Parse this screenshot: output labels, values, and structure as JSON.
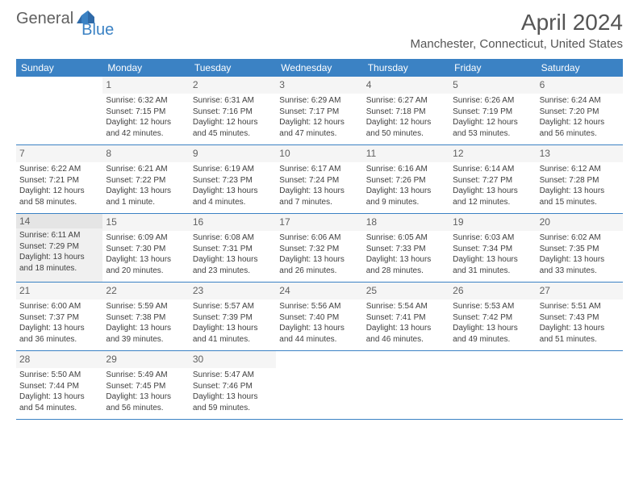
{
  "brand": {
    "part1": "General",
    "part2": "Blue"
  },
  "title": "April 2024",
  "location": "Manchester, Connecticut, United States",
  "colors": {
    "header_bg": "#3b82c4",
    "header_text": "#ffffff",
    "title_color": "#555555",
    "text_color": "#404040",
    "shaded_bg": "#f0f0f0",
    "rule_color": "#3b82c4"
  },
  "weekdays": [
    "Sunday",
    "Monday",
    "Tuesday",
    "Wednesday",
    "Thursday",
    "Friday",
    "Saturday"
  ],
  "weeks": [
    [
      {
        "blank": true
      },
      {
        "n": "1",
        "sr": "Sunrise: 6:32 AM",
        "ss": "Sunset: 7:15 PM",
        "d1": "Daylight: 12 hours",
        "d2": "and 42 minutes."
      },
      {
        "n": "2",
        "sr": "Sunrise: 6:31 AM",
        "ss": "Sunset: 7:16 PM",
        "d1": "Daylight: 12 hours",
        "d2": "and 45 minutes."
      },
      {
        "n": "3",
        "sr": "Sunrise: 6:29 AM",
        "ss": "Sunset: 7:17 PM",
        "d1": "Daylight: 12 hours",
        "d2": "and 47 minutes."
      },
      {
        "n": "4",
        "sr": "Sunrise: 6:27 AM",
        "ss": "Sunset: 7:18 PM",
        "d1": "Daylight: 12 hours",
        "d2": "and 50 minutes."
      },
      {
        "n": "5",
        "sr": "Sunrise: 6:26 AM",
        "ss": "Sunset: 7:19 PM",
        "d1": "Daylight: 12 hours",
        "d2": "and 53 minutes."
      },
      {
        "n": "6",
        "sr": "Sunrise: 6:24 AM",
        "ss": "Sunset: 7:20 PM",
        "d1": "Daylight: 12 hours",
        "d2": "and 56 minutes."
      }
    ],
    [
      {
        "n": "7",
        "sr": "Sunrise: 6:22 AM",
        "ss": "Sunset: 7:21 PM",
        "d1": "Daylight: 12 hours",
        "d2": "and 58 minutes."
      },
      {
        "n": "8",
        "sr": "Sunrise: 6:21 AM",
        "ss": "Sunset: 7:22 PM",
        "d1": "Daylight: 13 hours",
        "d2": "and 1 minute."
      },
      {
        "n": "9",
        "sr": "Sunrise: 6:19 AM",
        "ss": "Sunset: 7:23 PM",
        "d1": "Daylight: 13 hours",
        "d2": "and 4 minutes."
      },
      {
        "n": "10",
        "sr": "Sunrise: 6:17 AM",
        "ss": "Sunset: 7:24 PM",
        "d1": "Daylight: 13 hours",
        "d2": "and 7 minutes."
      },
      {
        "n": "11",
        "sr": "Sunrise: 6:16 AM",
        "ss": "Sunset: 7:26 PM",
        "d1": "Daylight: 13 hours",
        "d2": "and 9 minutes."
      },
      {
        "n": "12",
        "sr": "Sunrise: 6:14 AM",
        "ss": "Sunset: 7:27 PM",
        "d1": "Daylight: 13 hours",
        "d2": "and 12 minutes."
      },
      {
        "n": "13",
        "sr": "Sunrise: 6:12 AM",
        "ss": "Sunset: 7:28 PM",
        "d1": "Daylight: 13 hours",
        "d2": "and 15 minutes."
      }
    ],
    [
      {
        "n": "14",
        "shaded": true,
        "sr": "Sunrise: 6:11 AM",
        "ss": "Sunset: 7:29 PM",
        "d1": "Daylight: 13 hours",
        "d2": "and 18 minutes."
      },
      {
        "n": "15",
        "sr": "Sunrise: 6:09 AM",
        "ss": "Sunset: 7:30 PM",
        "d1": "Daylight: 13 hours",
        "d2": "and 20 minutes."
      },
      {
        "n": "16",
        "sr": "Sunrise: 6:08 AM",
        "ss": "Sunset: 7:31 PM",
        "d1": "Daylight: 13 hours",
        "d2": "and 23 minutes."
      },
      {
        "n": "17",
        "sr": "Sunrise: 6:06 AM",
        "ss": "Sunset: 7:32 PM",
        "d1": "Daylight: 13 hours",
        "d2": "and 26 minutes."
      },
      {
        "n": "18",
        "sr": "Sunrise: 6:05 AM",
        "ss": "Sunset: 7:33 PM",
        "d1": "Daylight: 13 hours",
        "d2": "and 28 minutes."
      },
      {
        "n": "19",
        "sr": "Sunrise: 6:03 AM",
        "ss": "Sunset: 7:34 PM",
        "d1": "Daylight: 13 hours",
        "d2": "and 31 minutes."
      },
      {
        "n": "20",
        "sr": "Sunrise: 6:02 AM",
        "ss": "Sunset: 7:35 PM",
        "d1": "Daylight: 13 hours",
        "d2": "and 33 minutes."
      }
    ],
    [
      {
        "n": "21",
        "sr": "Sunrise: 6:00 AM",
        "ss": "Sunset: 7:37 PM",
        "d1": "Daylight: 13 hours",
        "d2": "and 36 minutes."
      },
      {
        "n": "22",
        "sr": "Sunrise: 5:59 AM",
        "ss": "Sunset: 7:38 PM",
        "d1": "Daylight: 13 hours",
        "d2": "and 39 minutes."
      },
      {
        "n": "23",
        "sr": "Sunrise: 5:57 AM",
        "ss": "Sunset: 7:39 PM",
        "d1": "Daylight: 13 hours",
        "d2": "and 41 minutes."
      },
      {
        "n": "24",
        "sr": "Sunrise: 5:56 AM",
        "ss": "Sunset: 7:40 PM",
        "d1": "Daylight: 13 hours",
        "d2": "and 44 minutes."
      },
      {
        "n": "25",
        "sr": "Sunrise: 5:54 AM",
        "ss": "Sunset: 7:41 PM",
        "d1": "Daylight: 13 hours",
        "d2": "and 46 minutes."
      },
      {
        "n": "26",
        "sr": "Sunrise: 5:53 AM",
        "ss": "Sunset: 7:42 PM",
        "d1": "Daylight: 13 hours",
        "d2": "and 49 minutes."
      },
      {
        "n": "27",
        "sr": "Sunrise: 5:51 AM",
        "ss": "Sunset: 7:43 PM",
        "d1": "Daylight: 13 hours",
        "d2": "and 51 minutes."
      }
    ],
    [
      {
        "n": "28",
        "sr": "Sunrise: 5:50 AM",
        "ss": "Sunset: 7:44 PM",
        "d1": "Daylight: 13 hours",
        "d2": "and 54 minutes."
      },
      {
        "n": "29",
        "sr": "Sunrise: 5:49 AM",
        "ss": "Sunset: 7:45 PM",
        "d1": "Daylight: 13 hours",
        "d2": "and 56 minutes."
      },
      {
        "n": "30",
        "sr": "Sunrise: 5:47 AM",
        "ss": "Sunset: 7:46 PM",
        "d1": "Daylight: 13 hours",
        "d2": "and 59 minutes."
      },
      {
        "blank": true
      },
      {
        "blank": true
      },
      {
        "blank": true
      },
      {
        "blank": true
      }
    ]
  ]
}
